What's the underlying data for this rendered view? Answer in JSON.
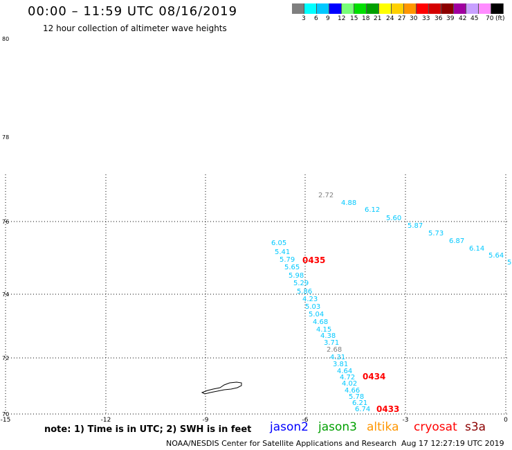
{
  "header": {
    "title": "00:00 – 11:59 UTC 08/16/2019",
    "subtitle": "12 hour collection of altimeter wave heights"
  },
  "legend": {
    "colors": [
      "#7f7f7f",
      "#00ffff",
      "#00c8ff",
      "#0000ff",
      "#78ff78",
      "#00e000",
      "#00a000",
      "#ffff00",
      "#ffd000",
      "#ff9600",
      "#ff0000",
      "#d40000",
      "#8c0000",
      "#a000a0",
      "#c8a0ff",
      "#ff8cff",
      "#000000"
    ],
    "labels": [
      "3",
      "6",
      "9",
      "12",
      "15",
      "18",
      "21",
      "24",
      "27",
      "30",
      "33",
      "36",
      "39",
      "42",
      "45",
      "70",
      "(ft)"
    ]
  },
  "map": {
    "lat_labels": [
      "80",
      "78",
      "76",
      "74",
      "72",
      "70"
    ],
    "lon_labels": [
      "-15",
      "-12",
      "-9",
      "-6",
      "-3",
      "0"
    ],
    "readings": [
      {
        "text": "2.72",
        "color": "#7f7f7f"
      },
      {
        "text": "4.88",
        "color": "#00c8ff"
      },
      {
        "text": "6.12",
        "color": "#00c8ff"
      },
      {
        "text": "5.60",
        "color": "#00c8ff"
      },
      {
        "text": "5.87",
        "color": "#00c8ff"
      },
      {
        "text": "5.73",
        "color": "#00c8ff"
      },
      {
        "text": "6.87",
        "color": "#00c8ff"
      },
      {
        "text": "6.14",
        "color": "#00c8ff"
      },
      {
        "text": "5.64",
        "color": "#00c8ff"
      },
      {
        "text": "5",
        "color": "#00c8ff"
      },
      {
        "text": "6.05",
        "color": "#00c8ff"
      },
      {
        "text": "5.41",
        "color": "#00c8ff"
      },
      {
        "text": "5.79",
        "color": "#00c8ff"
      },
      {
        "text": "5.65",
        "color": "#00c8ff"
      },
      {
        "text": "5.98",
        "color": "#00c8ff"
      },
      {
        "text": "5.29",
        "color": "#00c8ff"
      },
      {
        "text": "5.86",
        "color": "#00c8ff"
      },
      {
        "text": "4.23",
        "color": "#00c8ff"
      },
      {
        "text": "5.03",
        "color": "#00c8ff"
      },
      {
        "text": "5.04",
        "color": "#00c8ff"
      },
      {
        "text": "4.68",
        "color": "#00c8ff"
      },
      {
        "text": "4.15",
        "color": "#00c8ff"
      },
      {
        "text": "4.38",
        "color": "#00c8ff"
      },
      {
        "text": "3.71",
        "color": "#00c8ff"
      },
      {
        "text": "2.68",
        "color": "#7f7f7f"
      },
      {
        "text": "4.31",
        "color": "#00c8ff"
      },
      {
        "text": "3.81",
        "color": "#00c8ff"
      },
      {
        "text": "4.64",
        "color": "#00c8ff"
      },
      {
        "text": "4.72",
        "color": "#00c8ff"
      },
      {
        "text": "4.02",
        "color": "#00c8ff"
      },
      {
        "text": "4.66",
        "color": "#00c8ff"
      },
      {
        "text": "5.78",
        "color": "#00c8ff"
      },
      {
        "text": "6.21",
        "color": "#00c8ff"
      },
      {
        "text": "6.74",
        "color": "#00c8ff"
      }
    ],
    "pass_times": [
      {
        "text": "0435",
        "color": "#ff0000"
      },
      {
        "text": "0434",
        "color": "#ff0000"
      },
      {
        "text": "0433",
        "color": "#ff0000"
      }
    ]
  },
  "footer": {
    "note": "note: 1) Time is in UTC; 2) SWH is in feet",
    "satellites": [
      {
        "name": "jason2",
        "color": "#0000ff"
      },
      {
        "name": "jason3",
        "color": "#00a000"
      },
      {
        "name": "altika",
        "color": "#ff9600"
      },
      {
        "name": "cryosat",
        "color": "#ff0000"
      },
      {
        "name": "s3a",
        "color": "#8c0000"
      }
    ],
    "credit": "NOAA/NESDIS Center for Satellite Applications and Research",
    "timestamp": "Aug 17 12:27:19 UTC 2019"
  }
}
